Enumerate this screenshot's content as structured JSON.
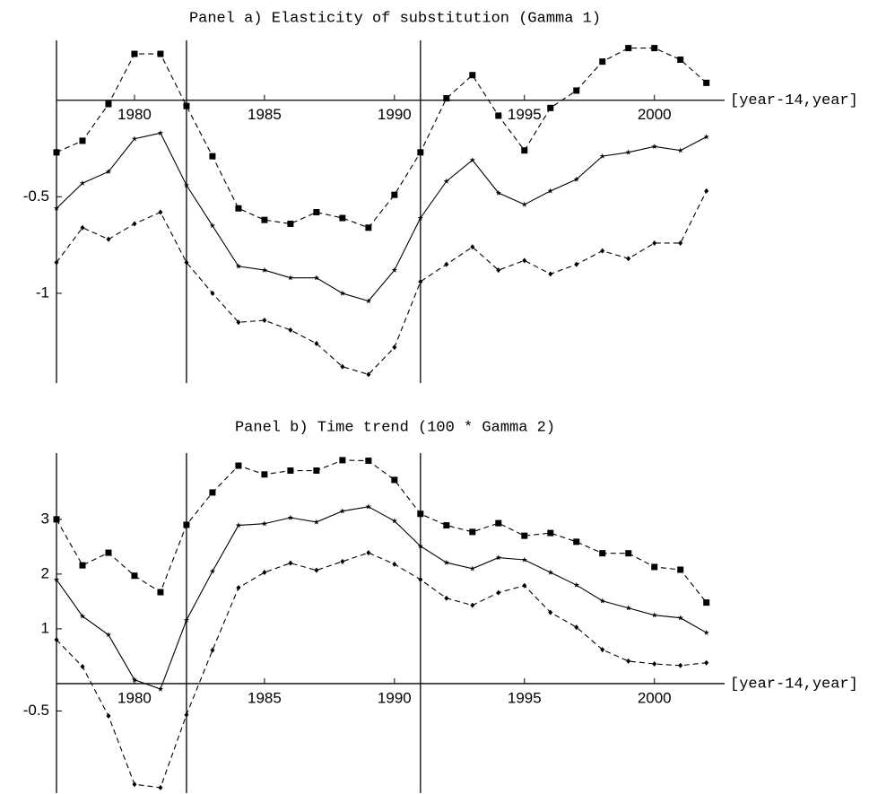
{
  "chart_data": [
    {
      "type": "line",
      "title": "Panel a) Elasticity of substitution (Gamma 1)",
      "x_label": "[year-14,year]",
      "x": [
        1977,
        1978,
        1979,
        1980,
        1981,
        1982,
        1983,
        1984,
        1985,
        1986,
        1987,
        1988,
        1989,
        1990,
        1991,
        1992,
        1993,
        1994,
        1995,
        1996,
        1997,
        1998,
        1999,
        2000,
        2001,
        2002
      ],
      "series": [
        {
          "color": "#000000",
          "marker": "square",
          "dashed": true,
          "values": [
            -0.27,
            -0.21,
            -0.02,
            0.24,
            0.24,
            -0.03,
            -0.29,
            -0.56,
            -0.62,
            -0.64,
            -0.58,
            -0.61,
            -0.66,
            -0.49,
            -0.27,
            0.01,
            0.13,
            -0.08,
            -0.26,
            -0.04,
            0.05,
            0.2,
            0.27,
            0.27,
            0.21,
            0.09
          ]
        },
        {
          "color": "#000000",
          "marker": "star",
          "dashed": false,
          "values": [
            -0.56,
            -0.43,
            -0.37,
            -0.2,
            -0.17,
            -0.44,
            -0.65,
            -0.86,
            -0.88,
            -0.92,
            -0.92,
            -1.0,
            -1.04,
            -0.88,
            -0.61,
            -0.42,
            -0.31,
            -0.48,
            -0.54,
            -0.47,
            -0.41,
            -0.29,
            -0.27,
            -0.24,
            -0.26,
            -0.19
          ]
        },
        {
          "color": "#000000",
          "marker": "diamond",
          "dashed": true,
          "values": [
            -0.84,
            -0.66,
            -0.72,
            -0.64,
            -0.58,
            -0.84,
            -1.0,
            -1.15,
            -1.14,
            -1.19,
            -1.26,
            -1.38,
            -1.42,
            -1.28,
            -0.94,
            -0.85,
            -0.76,
            -0.88,
            -0.83,
            -0.9,
            -0.85,
            -0.78,
            -0.82,
            -0.74,
            -0.74,
            -0.47
          ]
        }
      ],
      "vlines": [
        1982,
        1991
      ],
      "xlim": [
        1977,
        2002.7
      ],
      "xticks": [
        1980,
        1985,
        1990,
        1995,
        2000
      ],
      "ylim": [
        -1.465,
        0.31
      ],
      "yticks": [
        -1,
        -0.5
      ]
    },
    {
      "type": "line",
      "title": "Panel b) Time trend (100 * Gamma 2)",
      "x_label": "[year-14,year]",
      "x": [
        1977,
        1978,
        1979,
        1980,
        1981,
        1982,
        1983,
        1984,
        1985,
        1986,
        1987,
        1988,
        1989,
        1990,
        1991,
        1992,
        1993,
        1994,
        1995,
        1996,
        1997,
        1998,
        1999,
        2000,
        2001,
        2002
      ],
      "series": [
        {
          "color": "#000000",
          "marker": "square",
          "dashed": true,
          "values": [
            3.0,
            2.16,
            2.39,
            1.97,
            1.67,
            2.9,
            3.49,
            3.98,
            3.82,
            3.89,
            3.89,
            4.08,
            4.07,
            3.72,
            3.1,
            2.89,
            2.77,
            2.93,
            2.7,
            2.75,
            2.59,
            2.38,
            2.38,
            2.13,
            2.08,
            1.48
          ]
        },
        {
          "color": "#000000",
          "marker": "star",
          "dashed": false,
          "values": [
            1.9,
            1.23,
            0.89,
            0.07,
            -0.1,
            1.16,
            2.05,
            2.89,
            2.92,
            3.03,
            2.95,
            3.15,
            3.23,
            2.97,
            2.51,
            2.21,
            2.1,
            2.3,
            2.26,
            2.03,
            1.8,
            1.51,
            1.38,
            1.25,
            1.2,
            0.93
          ]
        },
        {
          "color": "#000000",
          "marker": "diamond",
          "dashed": true,
          "values": [
            0.8,
            0.31,
            -0.59,
            -1.84,
            -1.9,
            -0.57,
            0.61,
            1.75,
            2.03,
            2.2,
            2.07,
            2.23,
            2.39,
            2.18,
            1.9,
            1.56,
            1.43,
            1.66,
            1.79,
            1.3,
            1.03,
            0.62,
            0.41,
            0.36,
            0.33,
            0.38
          ]
        }
      ],
      "vlines": [
        1982,
        1991
      ],
      "xlim": [
        1977,
        2002.7
      ],
      "xticks": [
        1980,
        1985,
        1990,
        1995,
        2000
      ],
      "ylim": [
        -2.0,
        4.21
      ],
      "yticks": [
        -0.5,
        1,
        2,
        3
      ]
    }
  ]
}
